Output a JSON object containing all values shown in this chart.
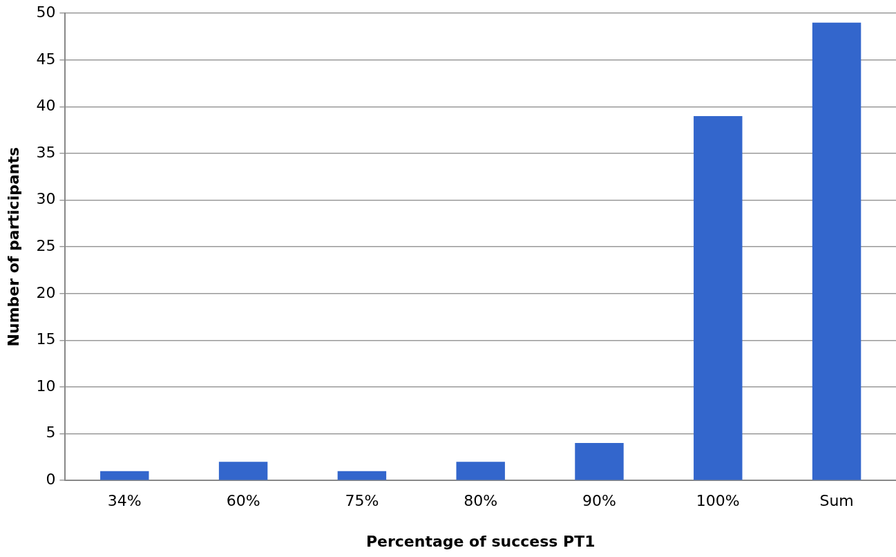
{
  "chart_data": {
    "type": "bar",
    "xlabel": "Percentage of success PT1",
    "ylabel": "Number of participants",
    "categories": [
      "34%",
      "60%",
      "75%",
      "80%",
      "90%",
      "100%",
      "Sum"
    ],
    "values": [
      1,
      2,
      1,
      2,
      4,
      39,
      49
    ],
    "color": "#3366cc",
    "ylim": [
      0,
      50
    ],
    "yticks": [
      0,
      5,
      10,
      15,
      20,
      25,
      30,
      35,
      40,
      45,
      50
    ],
    "grid": "y",
    "legend": false
  }
}
